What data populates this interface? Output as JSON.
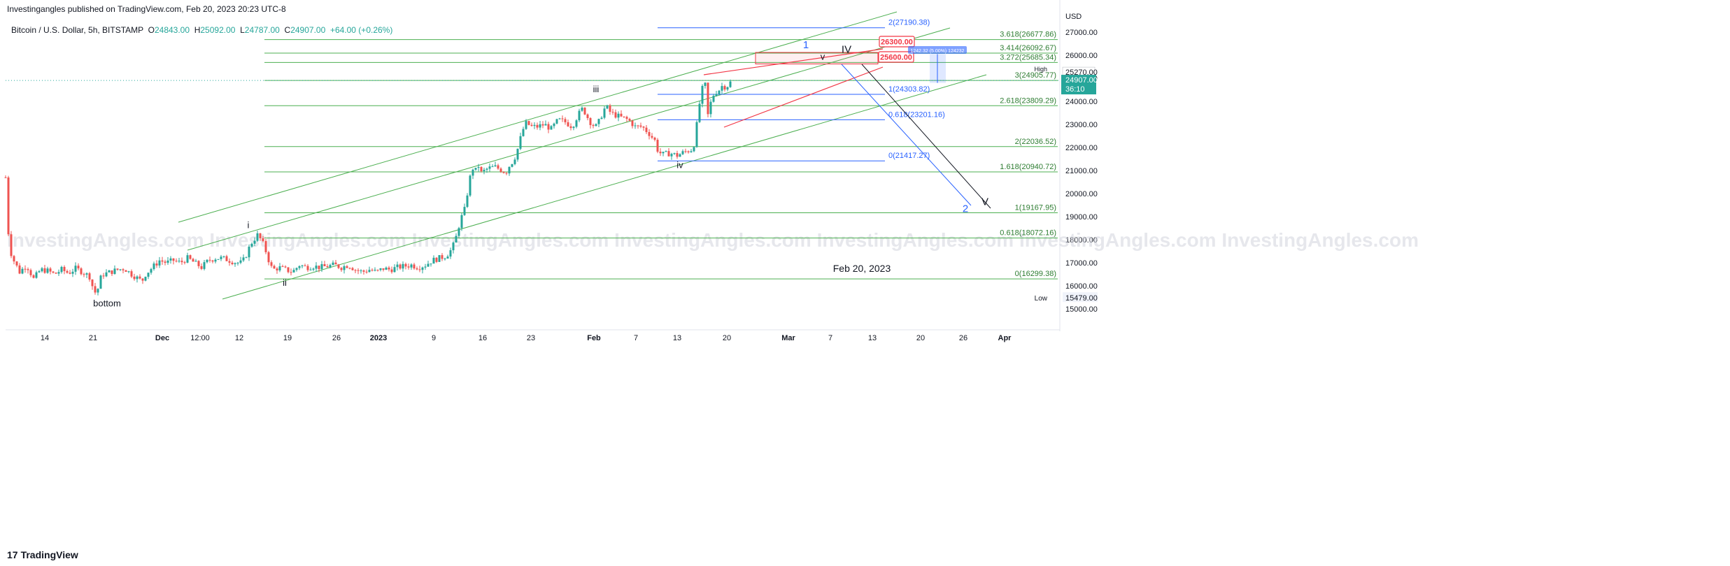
{
  "header": {
    "publisher": "Investingangles published on TradingView.com, Feb 20, 2023 20:23 UTC-8"
  },
  "symbol": {
    "name": "Bitcoin / U.S. Dollar, 5h, BITSTAMP",
    "open_label": "O",
    "open": "24843.00",
    "high_label": "H",
    "high": "25092.00",
    "low_label": "L",
    "low": "24787.00",
    "close_label": "C",
    "close": "24907.00",
    "change": "+64.00 (+0.26%)"
  },
  "footer": {
    "logo": "TradingView"
  },
  "watermark": "InvestingAngles.com",
  "colors": {
    "up": "#26a69a",
    "down": "#ef5350",
    "green_line": "#4caf50",
    "blue_line": "#2962ff",
    "red_line": "#f23645",
    "text": "#131722",
    "axis_text": "#131722"
  },
  "chart_data": {
    "type": "candlestick",
    "title": "",
    "currency": "USD",
    "ylim": [
      14000,
      28000
    ],
    "y_ticks": [
      "15000.00",
      "16000.00",
      "17000.00",
      "18000.00",
      "19000.00",
      "20000.00",
      "21000.00",
      "22000.00",
      "23000.00",
      "24000.00",
      "25000.00",
      "26000.00",
      "27000.00"
    ],
    "x_ticks": [
      "14",
      "21",
      "Dec",
      "12:00",
      "12",
      "19",
      "26",
      "2023",
      "9",
      "16",
      "23",
      "Feb",
      "7",
      "13",
      "20",
      "Mar",
      "7",
      "13",
      "20",
      "26",
      "Apr"
    ],
    "price_labels": {
      "high_label": "High",
      "high_value": "25270.00",
      "current_value": "24907.00",
      "countdown": "36:10",
      "low_label": "Low",
      "low_value": "15479.00"
    },
    "price_path": [
      [
        0,
        20700
      ],
      [
        5,
        17700
      ],
      [
        10,
        17200
      ],
      [
        20,
        16600
      ],
      [
        30,
        16900
      ],
      [
        40,
        16300
      ],
      [
        50,
        16700
      ],
      [
        60,
        16650
      ],
      [
        70,
        16500
      ],
      [
        80,
        16700
      ],
      [
        90,
        16550
      ],
      [
        100,
        16750
      ],
      [
        110,
        16600
      ],
      [
        120,
        16400
      ],
      [
        125,
        15900
      ],
      [
        130,
        15600
      ],
      [
        135,
        16300
      ],
      [
        140,
        16500
      ],
      [
        150,
        16600
      ],
      [
        160,
        16700
      ],
      [
        170,
        16750
      ],
      [
        180,
        16500
      ],
      [
        190,
        16300
      ],
      [
        195,
        16200
      ],
      [
        200,
        16500
      ],
      [
        210,
        16800
      ],
      [
        220,
        17100
      ],
      [
        230,
        17000
      ],
      [
        240,
        17100
      ],
      [
        250,
        17000
      ],
      [
        260,
        17200
      ],
      [
        270,
        17000
      ],
      [
        280,
        16800
      ],
      [
        290,
        17100
      ],
      [
        300,
        17200
      ],
      [
        310,
        17200
      ],
      [
        320,
        17100
      ],
      [
        330,
        17000
      ],
      [
        338,
        17000
      ],
      [
        345,
        17400
      ],
      [
        350,
        17800
      ],
      [
        355,
        18000
      ],
      [
        360,
        18200
      ],
      [
        365,
        18000
      ],
      [
        370,
        17700
      ],
      [
        375,
        17200
      ],
      [
        380,
        16800
      ],
      [
        385,
        16700
      ],
      [
        390,
        16800
      ],
      [
        400,
        16700
      ],
      [
        410,
        16600
      ],
      [
        420,
        16900
      ],
      [
        430,
        16800
      ],
      [
        440,
        16850
      ],
      [
        450,
        16800
      ],
      [
        460,
        16850
      ],
      [
        470,
        16900
      ],
      [
        480,
        16800
      ],
      [
        490,
        16900
      ],
      [
        500,
        16700
      ],
      [
        510,
        16600
      ],
      [
        520,
        16700
      ],
      [
        530,
        16600
      ],
      [
        540,
        16750
      ],
      [
        550,
        16700
      ],
      [
        560,
        16800
      ],
      [
        570,
        16850
      ],
      [
        580,
        16900
      ],
      [
        590,
        16800
      ],
      [
        600,
        16900
      ],
      [
        610,
        17100
      ],
      [
        620,
        17200
      ],
      [
        630,
        17300
      ],
      [
        638,
        17600
      ],
      [
        643,
        18000
      ],
      [
        648,
        18600
      ],
      [
        652,
        19000
      ],
      [
        656,
        19300
      ],
      [
        660,
        20000
      ],
      [
        664,
        20700
      ],
      [
        668,
        21100
      ],
      [
        672,
        21000
      ],
      [
        676,
        21200
      ],
      [
        680,
        20900
      ],
      [
        690,
        21100
      ],
      [
        700,
        21150
      ],
      [
        710,
        21000
      ],
      [
        715,
        20900
      ],
      [
        720,
        21200
      ],
      [
        725,
        21400
      ],
      [
        730,
        21700
      ],
      [
        735,
        22300
      ],
      [
        740,
        22800
      ],
      [
        745,
        23100
      ],
      [
        750,
        22900
      ],
      [
        760,
        22900
      ],
      [
        770,
        23000
      ],
      [
        780,
        22800
      ],
      [
        790,
        23200
      ],
      [
        800,
        23100
      ],
      [
        810,
        22900
      ],
      [
        818,
        23400
      ],
      [
        825,
        23700
      ],
      [
        832,
        23300
      ],
      [
        838,
        23000
      ],
      [
        845,
        22900
      ],
      [
        852,
        23400
      ],
      [
        858,
        23800
      ],
      [
        865,
        23500
      ],
      [
        872,
        23400
      ],
      [
        880,
        23300
      ],
      [
        890,
        23200
      ],
      [
        900,
        22900
      ],
      [
        910,
        22900
      ],
      [
        920,
        22600
      ],
      [
        928,
        22300
      ],
      [
        933,
        21800
      ],
      [
        940,
        21700
      ],
      [
        950,
        21750
      ],
      [
        960,
        21650
      ],
      [
        970,
        21800
      ],
      [
        980,
        21900
      ],
      [
        985,
        22200
      ],
      [
        990,
        23500
      ],
      [
        995,
        24500
      ],
      [
        1000,
        24700
      ],
      [
        1004,
        23400
      ],
      [
        1010,
        24200
      ],
      [
        1015,
        24400
      ],
      [
        1020,
        24500
      ],
      [
        1025,
        24700
      ],
      [
        1030,
        24600
      ],
      [
        1035,
        24800
      ],
      [
        1040,
        24900
      ],
      [
        1045,
        24907
      ]
    ],
    "wave_labels": [
      {
        "text": "i",
        "price": 18500,
        "x": 355
      },
      {
        "text": "ii",
        "price": 16000,
        "x": 407
      },
      {
        "text": "iii",
        "price": 24400,
        "x": 852
      },
      {
        "text": "iv",
        "price": 21100,
        "x": 972
      },
      {
        "text": "v",
        "price": 25800,
        "x": 1176
      },
      {
        "text": "IV",
        "price": 26100,
        "x": 1210
      },
      {
        "text": "1",
        "price": 26300,
        "x": 1152
      },
      {
        "text": "2",
        "price": 19200,
        "x": 1380
      },
      {
        "text": "V",
        "price": 19500,
        "x": 1408
      },
      {
        "text": "bottom",
        "price": 15100,
        "x": 153
      }
    ],
    "fib_levels_green": [
      {
        "label": "3.618(26677.86)",
        "price": 26677.86
      },
      {
        "label": "3.414(26092.67)",
        "price": 26092.67
      },
      {
        "label": "3.272(25685.34)",
        "price": 25685.34
      },
      {
        "label": "3(24905.77)",
        "price": 24905.77
      },
      {
        "label": "2.618(23809.29)",
        "price": 23809.29
      },
      {
        "label": "2(22036.52)",
        "price": 22036.52
      },
      {
        "label": "1.618(20940.72)",
        "price": 20940.72
      },
      {
        "label": "1(19167.95)",
        "price": 19167.95
      },
      {
        "label": "0.618(18072.16)",
        "price": 18072.16
      },
      {
        "label": "0(16299.38)",
        "price": 16299.38
      }
    ],
    "fib_levels_blue": [
      {
        "label": "2(27190.38)",
        "price": 27190.38
      },
      {
        "label": "1(24303.82)",
        "price": 24303.82
      },
      {
        "label": "0.618(23201.16)",
        "price": 23201.16
      },
      {
        "label": "0(21417.27)",
        "price": 21417.27
      }
    ],
    "targets": [
      {
        "label": "26300.00",
        "price": 26300
      },
      {
        "label": "25600.00",
        "price": 25600
      }
    ],
    "measure_label": "1242.32 (5.00%) 124232",
    "annotation": "Feb 20, 2023"
  }
}
